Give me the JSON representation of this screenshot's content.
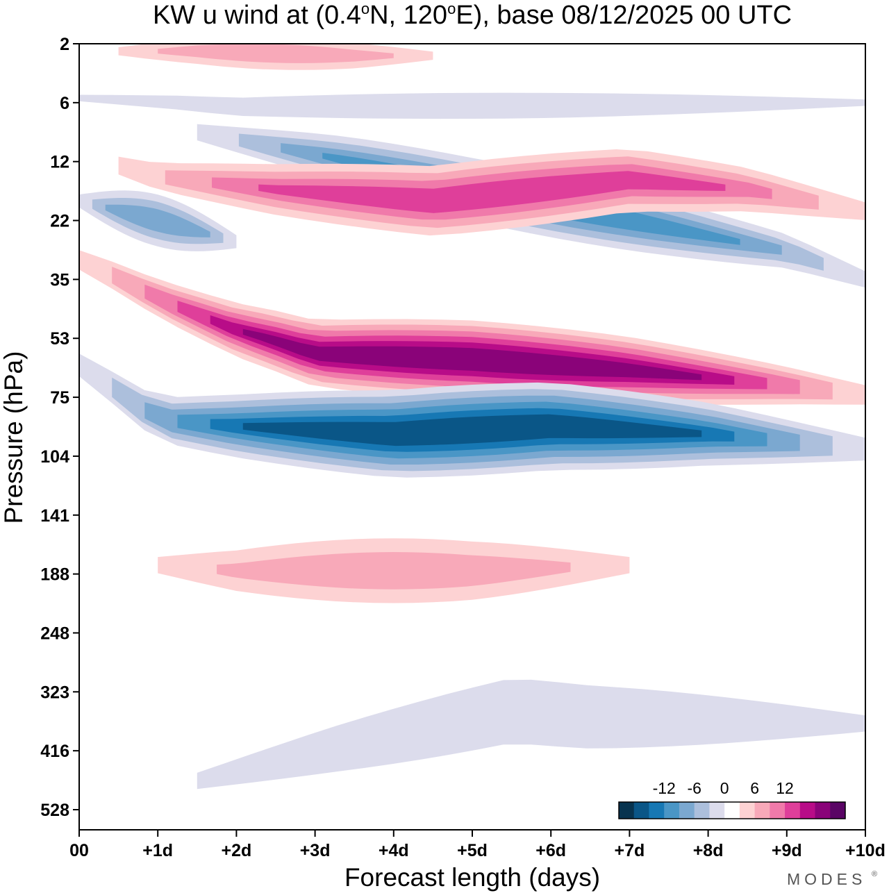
{
  "chart_data": {
    "type": "contour",
    "title": {
      "prefix": "KW u wind at (0.4",
      "deg1": "o",
      "mid": "N, 120",
      "deg2": "o",
      "suffix": "E),  base 08/12/2025  00 UTC"
    },
    "xlabel": "Forecast length (days)",
    "ylabel": "Pressure (hPa)",
    "xlim": [
      0,
      10
    ],
    "x_ticks": [
      {
        "v": 0,
        "label": "00"
      },
      {
        "v": 1,
        "label": "+1d"
      },
      {
        "v": 2,
        "label": "+2d"
      },
      {
        "v": 3,
        "label": "+3d"
      },
      {
        "v": 4,
        "label": "+4d"
      },
      {
        "v": 5,
        "label": "+5d"
      },
      {
        "v": 6,
        "label": "+6d"
      },
      {
        "v": 7,
        "label": "+7d"
      },
      {
        "v": 8,
        "label": "+8d"
      },
      {
        "v": 9,
        "label": "+9d"
      },
      {
        "v": 10,
        "label": "+10d"
      }
    ],
    "y_ticks": [
      "2",
      "6",
      "12",
      "22",
      "35",
      "53",
      "75",
      "104",
      "141",
      "188",
      "248",
      "323",
      "416",
      "528"
    ],
    "colorbar": {
      "colors": [
        "#07334f",
        "#0a5687",
        "#1778b4",
        "#4a96c6",
        "#7ba8d0",
        "#acbfdc",
        "#dcdcec",
        "#ffffff",
        "#fdd2d3",
        "#f8a9b9",
        "#f07aaa",
        "#df3f9a",
        "#b80c88",
        "#8a0379",
        "#5a0565"
      ],
      "labels": [
        {
          "v": -12,
          "text": "-12"
        },
        {
          "v": -6,
          "text": "-6"
        },
        {
          "v": 0,
          "text": "0"
        },
        {
          "v": 6,
          "text": "6"
        },
        {
          "v": 12,
          "text": "12"
        }
      ],
      "levels": [
        -21,
        -18,
        -15,
        -12,
        -9,
        -6,
        -3,
        0,
        3,
        6,
        9,
        12,
        15,
        18,
        21,
        24
      ]
    },
    "bands": [
      {
        "name": "upper stratosphere westerly (2-4 hPa)",
        "sign": 1,
        "level": 1,
        "peak": 6,
        "ridge": [
          [
            0.5,
            2.3
          ],
          [
            1.5,
            2.3
          ],
          [
            3.5,
            2.5
          ],
          [
            4.5,
            2.5
          ]
        ],
        "lift": 0,
        "halfwidth": 0.5
      },
      {
        "name": "easterly (6 hPa)",
        "sign": -1,
        "level": 1,
        "peak": 4,
        "ridge": [
          [
            0,
            5.5
          ],
          [
            2,
            6.3
          ],
          [
            6,
            6.2
          ],
          [
            10,
            6
          ]
        ],
        "lift": 0,
        "halfwidth": 0.4
      },
      {
        "name": "easterly descending (8 -> 30 hPa)",
        "sign": -1,
        "level": 3,
        "peak": 12,
        "ridge": [
          [
            1.5,
            8.5
          ],
          [
            3,
            11
          ],
          [
            5,
            16
          ],
          [
            7,
            22
          ],
          [
            9,
            28
          ],
          [
            10,
            35
          ]
        ],
        "halfwidth": 1.0
      },
      {
        "name": "westerly descending (14 -> 20 hPa)",
        "sign": 1,
        "level": 3,
        "peak": 12,
        "ridge": [
          [
            0.5,
            12.5
          ],
          [
            1,
            14
          ],
          [
            2.5,
            16
          ],
          [
            4.5,
            18
          ],
          [
            7,
            14.5
          ],
          [
            8.5,
            16
          ],
          [
            10,
            20
          ]
        ],
        "halfwidth": 1.1
      },
      {
        "name": "easterly (20 hPa, early)",
        "sign": -1,
        "level": 2,
        "peak": 9,
        "ridge": [
          [
            0,
            18
          ],
          [
            1,
            22
          ],
          [
            2,
            26
          ]
        ],
        "halfwidth": 0.8
      },
      {
        "name": "westerly descending (30 -> 70 hPa)",
        "sign": 1,
        "level": 3,
        "peak": 20,
        "ridge": [
          [
            0,
            30
          ],
          [
            1,
            40
          ],
          [
            2,
            50
          ],
          [
            3,
            58
          ],
          [
            5,
            60
          ],
          [
            7,
            64
          ],
          [
            9,
            70
          ],
          [
            10,
            74
          ]
        ],
        "halfwidth": 1.2
      },
      {
        "name": "easterly jet (85-95 hPa)",
        "sign": -1,
        "level": 4,
        "peak": 22,
        "ridge": [
          [
            0,
            62
          ],
          [
            1,
            85
          ],
          [
            2,
            88
          ],
          [
            4,
            92
          ],
          [
            6,
            88
          ],
          [
            8,
            92
          ],
          [
            10,
            100
          ]
        ],
        "halfwidth": 1.4
      },
      {
        "name": "westerly (170-200 hPa)",
        "sign": 1,
        "level": 1,
        "peak": 5,
        "ridge": [
          [
            1,
            180
          ],
          [
            2,
            185
          ],
          [
            5,
            185
          ],
          [
            7,
            180
          ]
        ],
        "halfwidth": 1.0
      },
      {
        "name": "easterly (330-500 hPa)",
        "sign": -1,
        "level": 1,
        "peak": 4,
        "ridge": [
          [
            1.5,
            470
          ],
          [
            5.5,
            350
          ],
          [
            6.5,
            360
          ],
          [
            10,
            370
          ]
        ],
        "halfwidth": 1.0
      }
    ],
    "legend_position": "bottom-right"
  },
  "brand": {
    "text": "MODES",
    "mark": "®"
  }
}
